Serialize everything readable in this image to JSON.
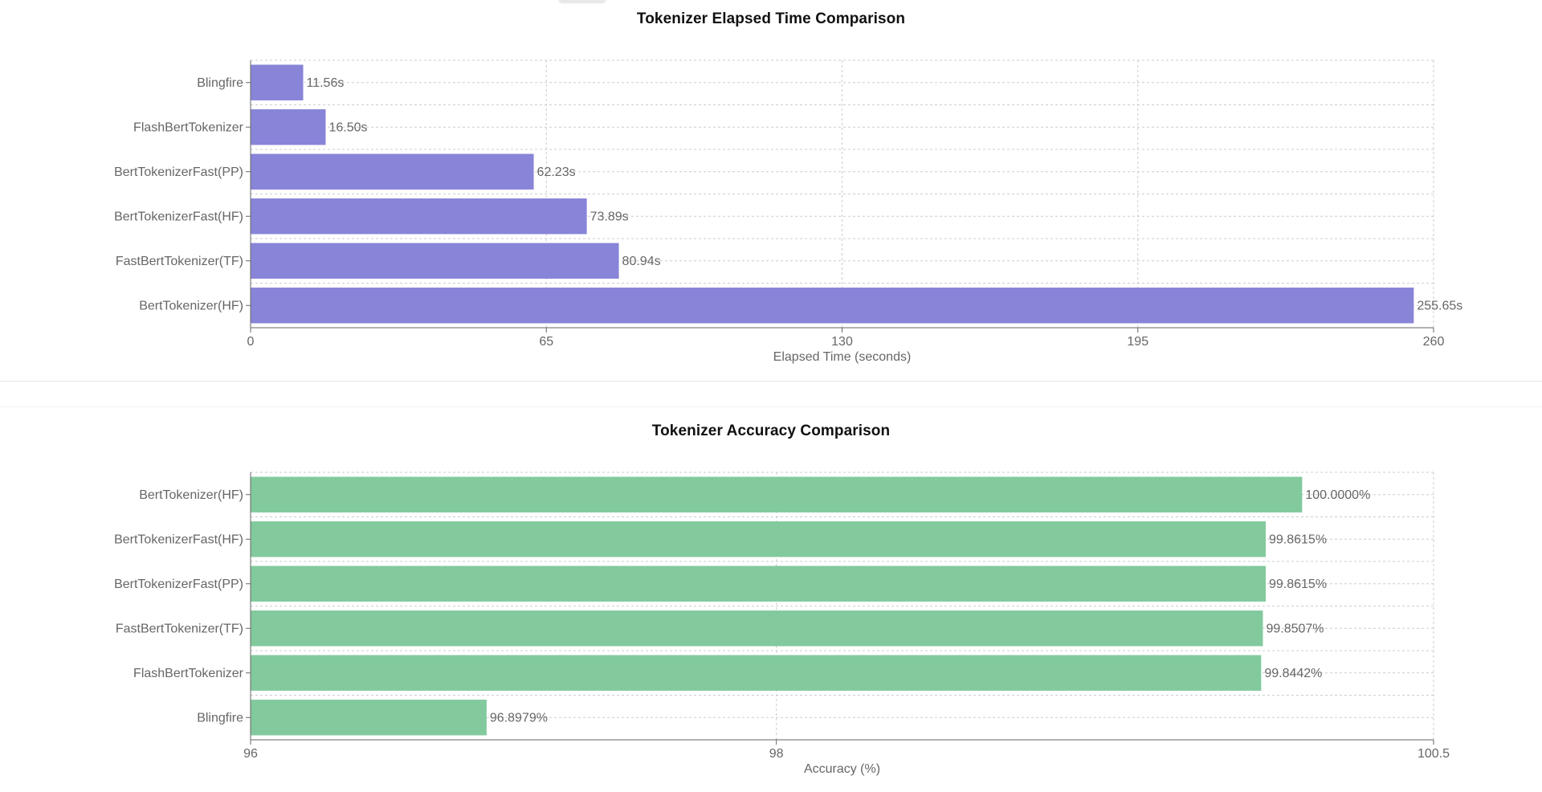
{
  "chart_data": [
    {
      "type": "bar",
      "orientation": "horizontal",
      "title": "Tokenizer Elapsed Time Comparison",
      "xlabel": "Elapsed Time (seconds)",
      "ylabel": "",
      "categories": [
        "Blingfire",
        "FlashBertTokenizer",
        "BertTokenizerFast(PP)",
        "BertTokenizerFast(HF)",
        "FastBertTokenizer(TF)",
        "BertTokenizer(HF)"
      ],
      "values": [
        11.56,
        16.5,
        62.23,
        73.89,
        80.94,
        255.65
      ],
      "value_labels": [
        "11.56s",
        "16.50s",
        "62.23s",
        "73.89s",
        "80.94s",
        "255.65s"
      ],
      "xlim": [
        0,
        260
      ],
      "xticks": [
        0,
        65,
        130,
        195,
        260
      ],
      "xtick_labels": [
        "0",
        "65",
        "130",
        "195",
        "260"
      ],
      "grid": true,
      "color": "#8884d8"
    },
    {
      "type": "bar",
      "orientation": "horizontal",
      "title": "Tokenizer Accuracy Comparison",
      "xlabel": "Accuracy (%)",
      "ylabel": "",
      "categories": [
        "BertTokenizer(HF)",
        "BertTokenizerFast(HF)",
        "BertTokenizerFast(PP)",
        "FastBertTokenizer(TF)",
        "FlashBertTokenizer",
        "Blingfire"
      ],
      "values": [
        100.0,
        99.8615,
        99.8615,
        99.8507,
        99.8442,
        96.8979
      ],
      "value_labels": [
        "100.0000%",
        "99.8615%",
        "99.8615%",
        "99.8507%",
        "99.8442%",
        "96.8979%"
      ],
      "xlim": [
        96,
        100.5
      ],
      "xticks": [
        96,
        98,
        100.5
      ],
      "xtick_labels": [
        "96",
        "98",
        "100.5"
      ],
      "grid": true,
      "color": "#82ca9d"
    }
  ]
}
